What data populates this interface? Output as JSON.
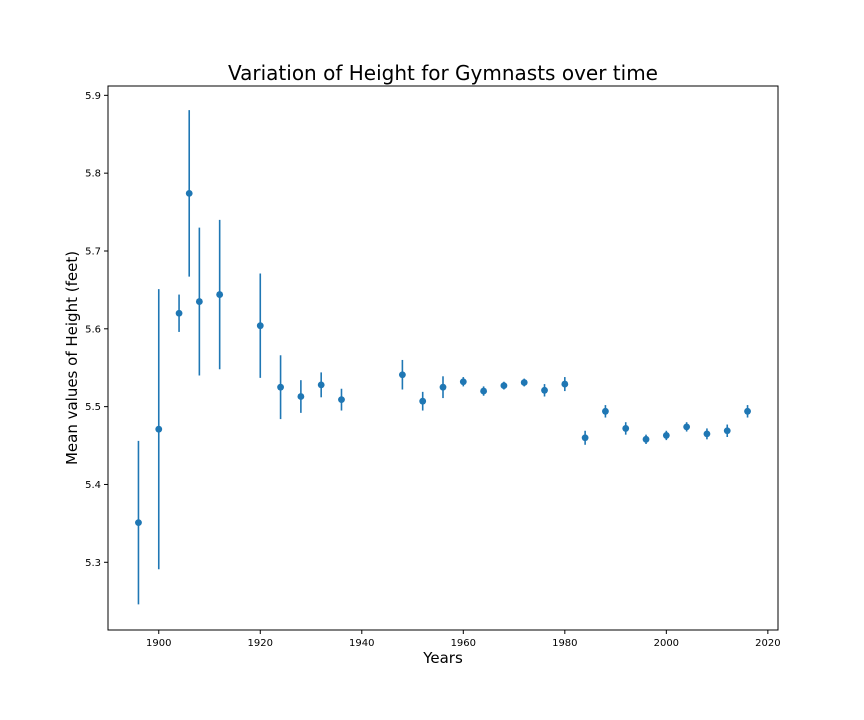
{
  "chart_data": {
    "type": "scatter",
    "title": "Variation of Height for Gymnasts over time",
    "xlabel": "Years",
    "ylabel": "Mean values of Height (feet)",
    "xlim": [
      1890,
      2022
    ],
    "ylim": [
      5.213,
      5.912
    ],
    "xticks": [
      1900,
      1920,
      1940,
      1960,
      1980,
      2000,
      2020
    ],
    "yticks": [
      5.3,
      5.4,
      5.5,
      5.6,
      5.7,
      5.8,
      5.9
    ],
    "grid": false,
    "color": "#1f77b4",
    "series": [
      {
        "x": [
          1896,
          1900,
          1904,
          1906,
          1908,
          1912,
          1920,
          1924,
          1928,
          1932,
          1936,
          1948,
          1952,
          1956,
          1960,
          1964,
          1968,
          1972,
          1976,
          1980,
          1984,
          1988,
          1992,
          1996,
          2000,
          2004,
          2008,
          2012,
          2016
        ],
        "y": [
          5.351,
          5.471,
          5.62,
          5.774,
          5.635,
          5.644,
          5.604,
          5.525,
          5.513,
          5.528,
          5.509,
          5.541,
          5.507,
          5.525,
          5.532,
          5.52,
          5.527,
          5.531,
          5.521,
          5.529,
          5.46,
          5.494,
          5.472,
          5.458,
          5.463,
          5.474,
          5.465,
          5.469,
          5.494
        ],
        "yerr": [
          0.105,
          0.18,
          0.024,
          0.107,
          0.095,
          0.096,
          0.067,
          0.041,
          0.021,
          0.016,
          0.014,
          0.019,
          0.012,
          0.014,
          0.006,
          0.006,
          0.005,
          0.005,
          0.008,
          0.009,
          0.009,
          0.008,
          0.008,
          0.006,
          0.006,
          0.006,
          0.007,
          0.008,
          0.008
        ]
      }
    ]
  }
}
